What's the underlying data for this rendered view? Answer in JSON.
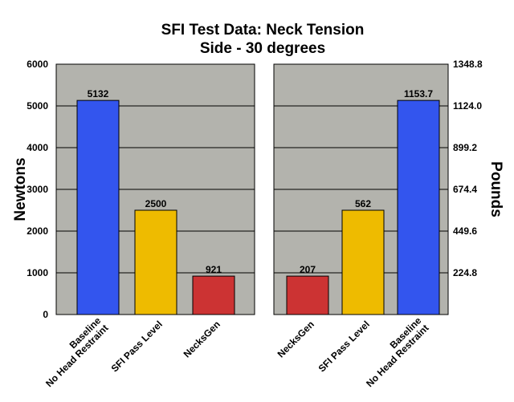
{
  "chart_data": {
    "type": "bar",
    "title": "SFI Test Data: Neck Tension",
    "subtitle": "Side - 30 degrees",
    "ylabel": "Newtons",
    "ylabel_right": "Pounds",
    "ylim": [
      0,
      6000
    ],
    "y_ticks": [
      "0",
      "1000",
      "2000",
      "3000",
      "4000",
      "5000",
      "6000"
    ],
    "y_right_ticks": [
      "224.8",
      "449.6",
      "674.4",
      "899.2",
      "1124.0",
      "1348.8"
    ],
    "grid": true,
    "colors": {
      "plot_bg": "#b3b3ad",
      "blue": "#3355ee",
      "yellow": "#eebb00",
      "red": "#cc3333"
    },
    "panels": [
      {
        "categories": [
          [
            "Baseline",
            "No Head Restraint"
          ],
          [
            "SFI Pass Level"
          ],
          [
            "NecksGen"
          ]
        ],
        "values": [
          5132,
          2500,
          921
        ],
        "data_labels": [
          "5132",
          "2500",
          "921"
        ],
        "bar_colors": [
          "#3355ee",
          "#eebb00",
          "#cc3333"
        ]
      },
      {
        "categories": [
          [
            "NecksGen"
          ],
          [
            "SFI Pass Level"
          ],
          [
            "Baseline",
            "No Head Restraint"
          ]
        ],
        "values": [
          921,
          2500,
          5132
        ],
        "data_labels": [
          "207",
          "562",
          "1153.7"
        ],
        "bar_colors": [
          "#cc3333",
          "#eebb00",
          "#3355ee"
        ]
      }
    ]
  }
}
